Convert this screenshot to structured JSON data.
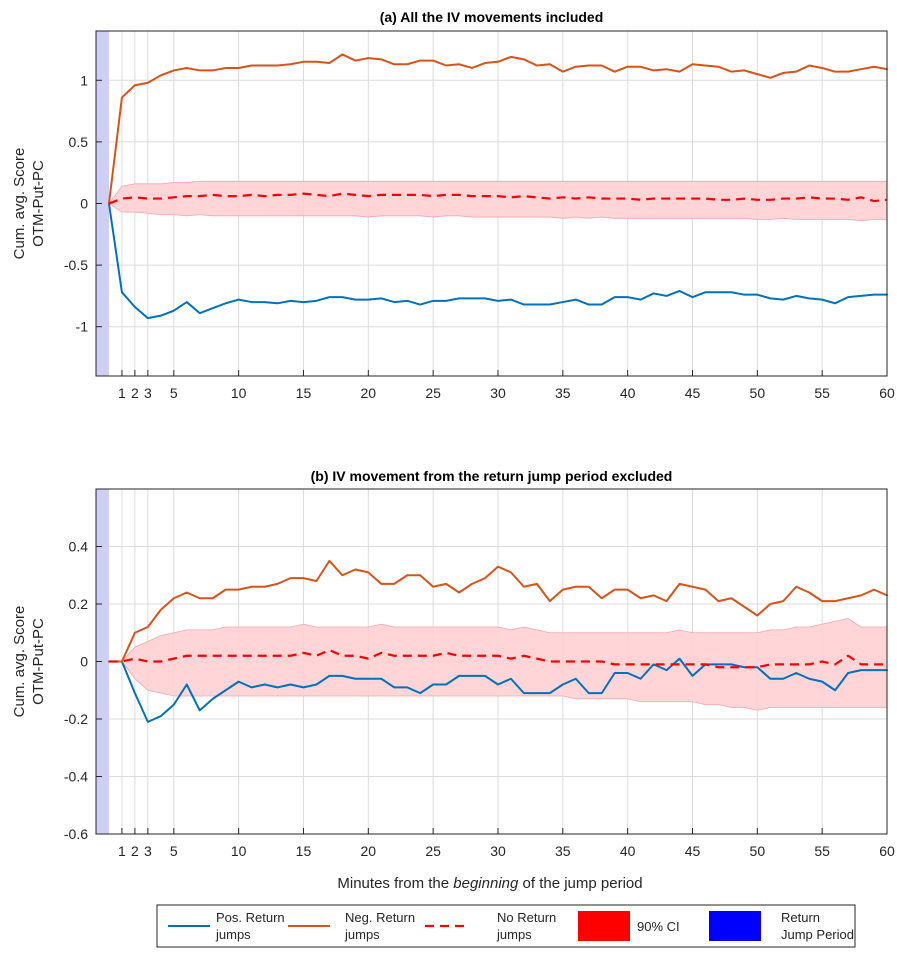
{
  "colors": {
    "pos": "#0072BD",
    "neg": "#D95319",
    "none": "#FF0000",
    "ci_fill": "#FFD0D4",
    "jump_fill": "#CFCFF5",
    "grid": "#DCDCDC",
    "axis": "#262626",
    "legend_ci": "#FF0000",
    "legend_jump": "#0000FF"
  },
  "xlabel": {
    "before": "Minutes from the ",
    "italic": "beginning",
    "after": " of the jump period"
  },
  "legend": [
    {
      "line1": "Pos. Return",
      "line2": "jumps",
      "style": "pos"
    },
    {
      "line1": "Neg. Return",
      "line2": "jumps",
      "style": "neg"
    },
    {
      "line1": "No Return",
      "line2": "jumps",
      "style": "none"
    },
    {
      "line1": "90% CI",
      "line2": "",
      "style": "ci"
    },
    {
      "line1": "Return",
      "line2": "Jump Period",
      "style": "jump"
    }
  ],
  "chart_data": [
    {
      "type": "line",
      "title": "(a) All the IV movements included",
      "ylabel": [
        "Cum. avg. Score",
        "OTM-Put-PC"
      ],
      "xlim": [
        -1,
        60
      ],
      "ylim": [
        -1.4,
        1.4
      ],
      "xticks": [
        1,
        2,
        3,
        5,
        10,
        15,
        20,
        25,
        30,
        35,
        40,
        45,
        50,
        55,
        60
      ],
      "yticks": [
        -1,
        -0.5,
        0,
        0.5,
        1
      ],
      "ytick_labels": [
        "-1",
        "-0.5",
        "0",
        "0.5",
        "1"
      ],
      "grid": true,
      "jump_period": [
        -1,
        0
      ],
      "x": [
        0,
        1,
        2,
        3,
        4,
        5,
        6,
        7,
        8,
        9,
        10,
        11,
        12,
        13,
        14,
        15,
        16,
        17,
        18,
        19,
        20,
        21,
        22,
        23,
        24,
        25,
        26,
        27,
        28,
        29,
        30,
        31,
        32,
        33,
        34,
        35,
        36,
        37,
        38,
        39,
        40,
        41,
        42,
        43,
        44,
        45,
        46,
        47,
        48,
        49,
        50,
        51,
        52,
        53,
        54,
        55,
        56,
        57,
        58,
        59,
        60
      ],
      "series": [
        {
          "name": "Pos. Return jumps",
          "style": "pos",
          "values": [
            0,
            -0.72,
            -0.84,
            -0.93,
            -0.91,
            -0.87,
            -0.8,
            -0.89,
            -0.85,
            -0.81,
            -0.78,
            -0.8,
            -0.8,
            -0.81,
            -0.79,
            -0.8,
            -0.79,
            -0.76,
            -0.76,
            -0.78,
            -0.78,
            -0.77,
            -0.8,
            -0.79,
            -0.82,
            -0.79,
            -0.79,
            -0.77,
            -0.77,
            -0.77,
            -0.79,
            -0.78,
            -0.82,
            -0.82,
            -0.82,
            -0.8,
            -0.78,
            -0.82,
            -0.82,
            -0.76,
            -0.76,
            -0.78,
            -0.73,
            -0.75,
            -0.71,
            -0.76,
            -0.72,
            -0.72,
            -0.72,
            -0.74,
            -0.74,
            -0.77,
            -0.78,
            -0.75,
            -0.77,
            -0.78,
            -0.81,
            -0.76,
            -0.75,
            -0.74,
            -0.74
          ]
        },
        {
          "name": "Neg. Return jumps",
          "style": "neg",
          "values": [
            0,
            0.86,
            0.96,
            0.98,
            1.04,
            1.08,
            1.1,
            1.08,
            1.08,
            1.1,
            1.1,
            1.12,
            1.12,
            1.12,
            1.13,
            1.15,
            1.15,
            1.14,
            1.21,
            1.16,
            1.18,
            1.17,
            1.13,
            1.13,
            1.16,
            1.16,
            1.12,
            1.13,
            1.1,
            1.14,
            1.15,
            1.19,
            1.17,
            1.12,
            1.13,
            1.07,
            1.11,
            1.12,
            1.12,
            1.07,
            1.11,
            1.11,
            1.08,
            1.09,
            1.07,
            1.13,
            1.12,
            1.11,
            1.07,
            1.08,
            1.05,
            1.02,
            1.06,
            1.07,
            1.12,
            1.1,
            1.07,
            1.07,
            1.09,
            1.11,
            1.09
          ]
        },
        {
          "name": "No Return jumps",
          "style": "none",
          "values": [
            0,
            0.04,
            0.05,
            0.04,
            0.04,
            0.05,
            0.06,
            0.06,
            0.07,
            0.06,
            0.06,
            0.07,
            0.06,
            0.07,
            0.07,
            0.08,
            0.07,
            0.06,
            0.08,
            0.07,
            0.06,
            0.07,
            0.07,
            0.07,
            0.07,
            0.06,
            0.07,
            0.07,
            0.06,
            0.06,
            0.06,
            0.05,
            0.06,
            0.05,
            0.04,
            0.05,
            0.04,
            0.05,
            0.04,
            0.04,
            0.04,
            0.03,
            0.04,
            0.04,
            0.04,
            0.04,
            0.04,
            0.03,
            0.03,
            0.04,
            0.03,
            0.03,
            0.04,
            0.04,
            0.05,
            0.04,
            0.04,
            0.03,
            0.05,
            0.02,
            0.03
          ]
        },
        {
          "name": "90% CI",
          "style": "ci",
          "upper": [
            0,
            0.14,
            0.16,
            0.16,
            0.16,
            0.17,
            0.17,
            0.18,
            0.18,
            0.18,
            0.18,
            0.18,
            0.18,
            0.18,
            0.18,
            0.18,
            0.18,
            0.18,
            0.18,
            0.18,
            0.18,
            0.18,
            0.18,
            0.18,
            0.18,
            0.18,
            0.18,
            0.18,
            0.18,
            0.18,
            0.18,
            0.18,
            0.18,
            0.18,
            0.18,
            0.18,
            0.18,
            0.18,
            0.18,
            0.18,
            0.18,
            0.18,
            0.18,
            0.18,
            0.18,
            0.18,
            0.18,
            0.18,
            0.18,
            0.18,
            0.18,
            0.18,
            0.18,
            0.18,
            0.18,
            0.18,
            0.18,
            0.18,
            0.18,
            0.18,
            0.18
          ],
          "lower": [
            0,
            -0.07,
            -0.07,
            -0.08,
            -0.09,
            -0.09,
            -0.1,
            -0.09,
            -0.1,
            -0.1,
            -0.1,
            -0.1,
            -0.1,
            -0.1,
            -0.1,
            -0.1,
            -0.1,
            -0.1,
            -0.1,
            -0.1,
            -0.11,
            -0.1,
            -0.1,
            -0.1,
            -0.1,
            -0.11,
            -0.1,
            -0.1,
            -0.11,
            -0.11,
            -0.11,
            -0.11,
            -0.11,
            -0.11,
            -0.11,
            -0.12,
            -0.11,
            -0.12,
            -0.11,
            -0.12,
            -0.12,
            -0.12,
            -0.12,
            -0.12,
            -0.12,
            -0.12,
            -0.12,
            -0.12,
            -0.12,
            -0.12,
            -0.13,
            -0.13,
            -0.12,
            -0.13,
            -0.13,
            -0.13,
            -0.13,
            -0.13,
            -0.14,
            -0.13,
            -0.13
          ]
        }
      ]
    },
    {
      "type": "line",
      "title": "(b) IV movement from the return jump period excluded",
      "ylabel": [
        "Cum. avg. Score",
        "OTM-Put-PC"
      ],
      "xlim": [
        -1,
        60
      ],
      "ylim": [
        -0.6,
        0.6
      ],
      "xticks": [
        1,
        2,
        3,
        5,
        10,
        15,
        20,
        25,
        30,
        35,
        40,
        45,
        50,
        55,
        60
      ],
      "yticks": [
        -0.6,
        -0.4,
        -0.2,
        0,
        0.2,
        0.4
      ],
      "ytick_labels": [
        "-0.6",
        "-0.4",
        "-0.2",
        "0",
        "0.2",
        "0.4"
      ],
      "grid": true,
      "jump_period": [
        -1,
        0
      ],
      "x": [
        0,
        1,
        2,
        3,
        4,
        5,
        6,
        7,
        8,
        9,
        10,
        11,
        12,
        13,
        14,
        15,
        16,
        17,
        18,
        19,
        20,
        21,
        22,
        23,
        24,
        25,
        26,
        27,
        28,
        29,
        30,
        31,
        32,
        33,
        34,
        35,
        36,
        37,
        38,
        39,
        40,
        41,
        42,
        43,
        44,
        45,
        46,
        47,
        48,
        49,
        50,
        51,
        52,
        53,
        54,
        55,
        56,
        57,
        58,
        59,
        60
      ],
      "series": [
        {
          "name": "Pos. Return jumps",
          "style": "pos",
          "values": [
            0,
            0,
            -0.11,
            -0.21,
            -0.19,
            -0.15,
            -0.08,
            -0.17,
            -0.13,
            -0.1,
            -0.07,
            -0.09,
            -0.08,
            -0.09,
            -0.08,
            -0.09,
            -0.08,
            -0.05,
            -0.05,
            -0.06,
            -0.06,
            -0.06,
            -0.09,
            -0.09,
            -0.11,
            -0.08,
            -0.08,
            -0.05,
            -0.05,
            -0.05,
            -0.08,
            -0.06,
            -0.11,
            -0.11,
            -0.11,
            -0.08,
            -0.06,
            -0.11,
            -0.11,
            -0.04,
            -0.04,
            -0.06,
            -0.01,
            -0.03,
            0.01,
            -0.05,
            -0.01,
            -0.01,
            -0.01,
            -0.02,
            -0.02,
            -0.06,
            -0.06,
            -0.04,
            -0.06,
            -0.07,
            -0.1,
            -0.04,
            -0.03,
            -0.03,
            -0.03
          ]
        },
        {
          "name": "Neg. Return jumps",
          "style": "neg",
          "values": [
            0,
            0,
            0.1,
            0.12,
            0.18,
            0.22,
            0.24,
            0.22,
            0.22,
            0.25,
            0.25,
            0.26,
            0.26,
            0.27,
            0.29,
            0.29,
            0.28,
            0.35,
            0.3,
            0.32,
            0.31,
            0.27,
            0.27,
            0.3,
            0.3,
            0.26,
            0.27,
            0.24,
            0.27,
            0.29,
            0.33,
            0.31,
            0.26,
            0.27,
            0.21,
            0.25,
            0.26,
            0.26,
            0.22,
            0.25,
            0.25,
            0.22,
            0.23,
            0.21,
            0.27,
            0.26,
            0.25,
            0.21,
            0.22,
            0.19,
            0.16,
            0.2,
            0.21,
            0.26,
            0.24,
            0.21,
            0.21,
            0.22,
            0.23,
            0.25,
            0.23
          ]
        },
        {
          "name": "No Return jumps",
          "style": "none",
          "values": [
            0,
            0,
            0.01,
            0,
            0,
            0.01,
            0.02,
            0.02,
            0.02,
            0.02,
            0.02,
            0.02,
            0.02,
            0.02,
            0.02,
            0.03,
            0.02,
            0.04,
            0.02,
            0.02,
            0.01,
            0.03,
            0.02,
            0.02,
            0.02,
            0.02,
            0.03,
            0.02,
            0.02,
            0.02,
            0.02,
            0.01,
            0.02,
            0.01,
            0,
            0,
            0,
            0,
            0,
            -0.01,
            -0.01,
            -0.01,
            -0.01,
            -0.01,
            -0.01,
            -0.01,
            -0.01,
            -0.02,
            -0.02,
            -0.02,
            -0.02,
            -0.01,
            -0.01,
            -0.01,
            -0.01,
            0,
            -0.01,
            0.02,
            -0.01,
            -0.01,
            -0.01
          ]
        },
        {
          "name": "90% CI",
          "style": "ci",
          "upper": [
            0,
            0,
            0.05,
            0.07,
            0.09,
            0.1,
            0.11,
            0.11,
            0.11,
            0.12,
            0.12,
            0.12,
            0.12,
            0.12,
            0.12,
            0.13,
            0.12,
            0.12,
            0.12,
            0.12,
            0.12,
            0.13,
            0.12,
            0.12,
            0.12,
            0.12,
            0.12,
            0.12,
            0.12,
            0.12,
            0.12,
            0.11,
            0.12,
            0.11,
            0.1,
            0.1,
            0.1,
            0.1,
            0.1,
            0.1,
            0.1,
            0.1,
            0.1,
            0.1,
            0.11,
            0.1,
            0.1,
            0.1,
            0.1,
            0.1,
            0.1,
            0.11,
            0.11,
            0.12,
            0.12,
            0.13,
            0.14,
            0.15,
            0.12,
            0.12,
            0.12
          ],
          "lower": [
            0,
            0,
            -0.06,
            -0.1,
            -0.11,
            -0.12,
            -0.12,
            -0.12,
            -0.12,
            -0.12,
            -0.12,
            -0.12,
            -0.12,
            -0.12,
            -0.12,
            -0.12,
            -0.12,
            -0.12,
            -0.12,
            -0.12,
            -0.12,
            -0.12,
            -0.12,
            -0.12,
            -0.12,
            -0.12,
            -0.12,
            -0.12,
            -0.12,
            -0.12,
            -0.12,
            -0.12,
            -0.12,
            -0.12,
            -0.12,
            -0.12,
            -0.13,
            -0.13,
            -0.13,
            -0.13,
            -0.13,
            -0.14,
            -0.14,
            -0.14,
            -0.14,
            -0.14,
            -0.15,
            -0.15,
            -0.16,
            -0.16,
            -0.17,
            -0.16,
            -0.16,
            -0.16,
            -0.16,
            -0.16,
            -0.16,
            -0.16,
            -0.16,
            -0.16,
            -0.16
          ]
        }
      ]
    }
  ]
}
